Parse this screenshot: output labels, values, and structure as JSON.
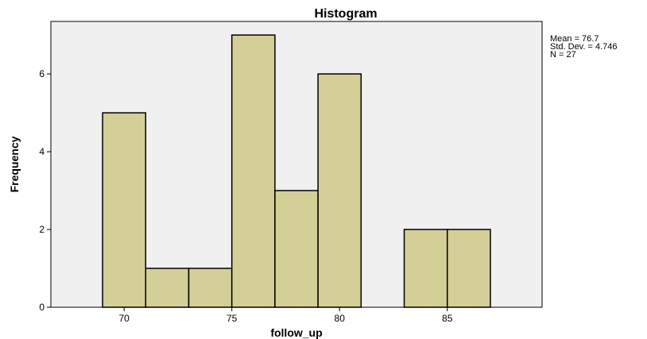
{
  "chart_data": {
    "type": "bar",
    "title": "Histogram",
    "xlabel": "follow_up",
    "ylabel": "Frequency",
    "bins": [
      {
        "start": 69,
        "end": 71,
        "count": 5
      },
      {
        "start": 71,
        "end": 73,
        "count": 1
      },
      {
        "start": 73,
        "end": 75,
        "count": 1
      },
      {
        "start": 75,
        "end": 77,
        "count": 7
      },
      {
        "start": 77,
        "end": 79,
        "count": 3
      },
      {
        "start": 79,
        "end": 81,
        "count": 6
      },
      {
        "start": 81,
        "end": 83,
        "count": 0
      },
      {
        "start": 83,
        "end": 85,
        "count": 2
      },
      {
        "start": 85,
        "end": 87,
        "count": 2
      }
    ],
    "xticks": [
      70,
      75,
      80,
      85
    ],
    "yticks": [
      0,
      2,
      4,
      6
    ],
    "xlim": [
      66.6,
      89.4
    ],
    "ylim": [
      0,
      7.35
    ],
    "stats": {
      "mean": "Mean = 76.7",
      "std": "Std. Dev. = 4.746",
      "n": "N = 27"
    },
    "colors": {
      "bar_fill": "#d4cf97",
      "bar_stroke": "#000000",
      "plot_bg": "#f0f0f0"
    },
    "grid": false
  }
}
